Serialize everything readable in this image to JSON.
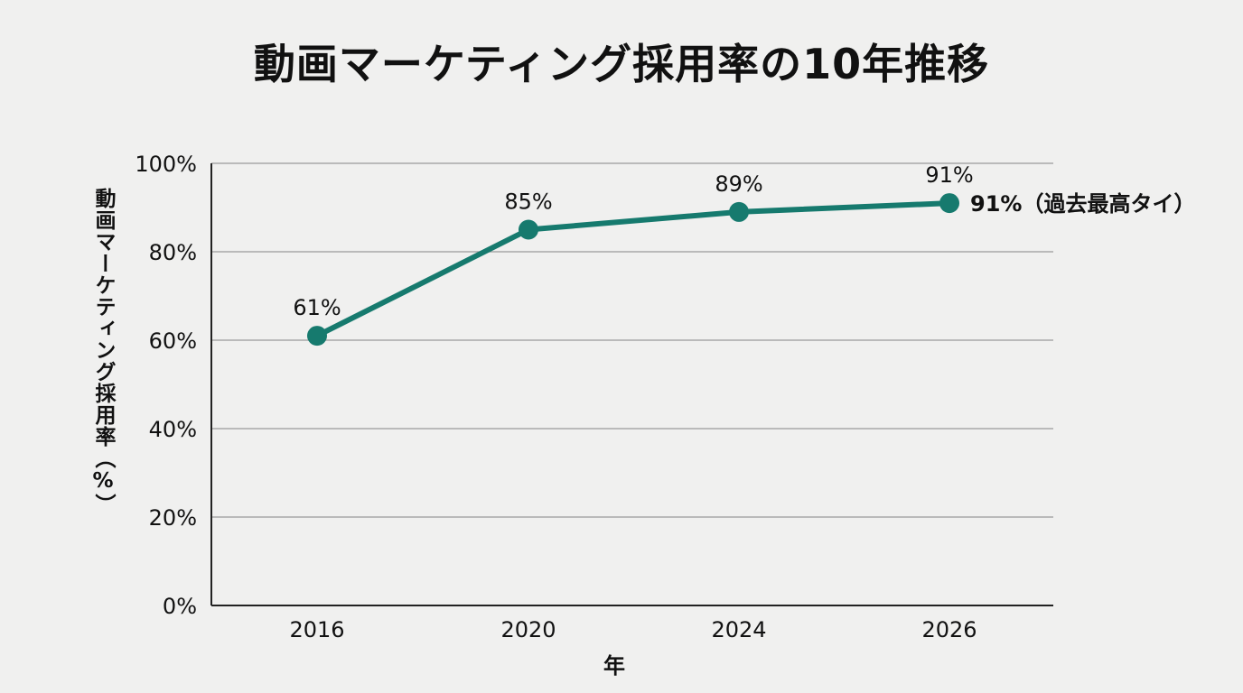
{
  "chart_data": {
    "type": "line",
    "title": "動画マーケティング採用率の10年推移",
    "xlabel": "年",
    "ylabel": "動画マーケティング採用率（%）",
    "x": [
      "2016",
      "2020",
      "2024",
      "2026"
    ],
    "ylim": [
      0,
      100
    ],
    "y_ticks": [
      "0%",
      "20%",
      "40%",
      "60%",
      "80%",
      "100%"
    ],
    "y_tick_values": [
      0,
      20,
      40,
      60,
      80,
      100
    ],
    "series": [
      {
        "values": [
          61,
          85,
          89,
          91
        ],
        "data_labels": [
          "61%",
          "85%",
          "89%",
          "91%"
        ],
        "color": "#167a6e"
      }
    ],
    "annotations": [
      {
        "text": "91%（過去最高タイ）",
        "x": "2026",
        "y": 91
      }
    ],
    "grid": "horizontal",
    "axis_color": "#222222",
    "grid_color": "#9a9a9a"
  }
}
